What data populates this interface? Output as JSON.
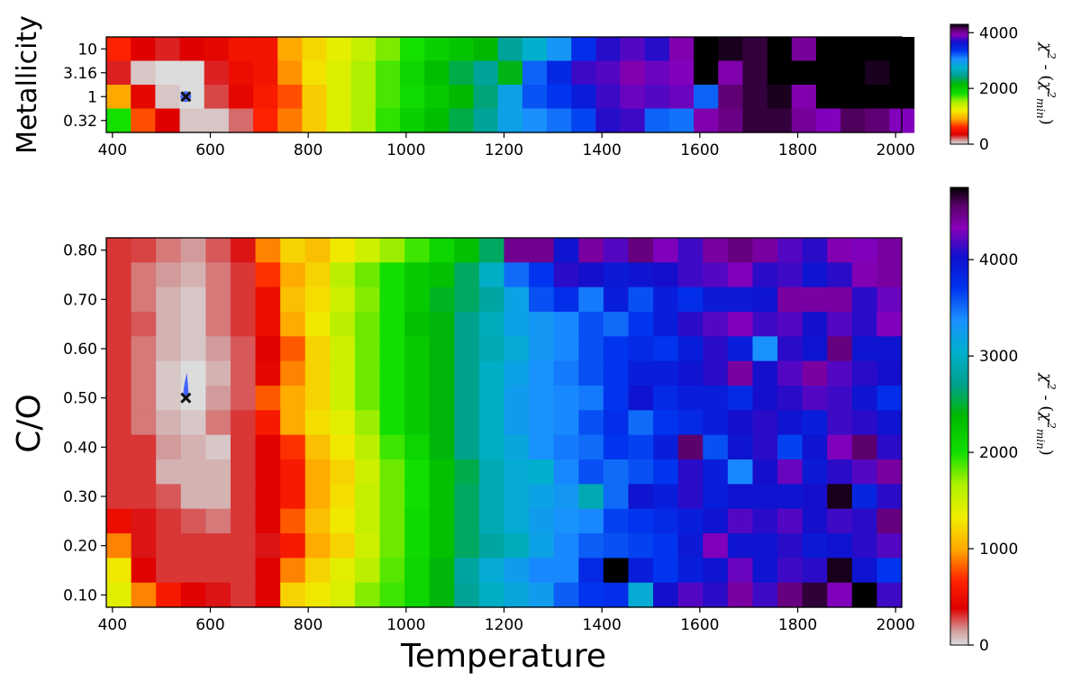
{
  "chart_data": [
    {
      "type": "heatmap",
      "name": "metallicity-panel",
      "xlabel": "",
      "ylabel": "Metallicity",
      "x_ticks": [
        400,
        600,
        800,
        1000,
        1200,
        1400,
        1600,
        1800,
        2000
      ],
      "y_categories": [
        "0.32",
        "1",
        "3.16",
        "10"
      ],
      "x_range": [
        387.5,
        2012.5
      ],
      "x_bin_width": 25,
      "best_fit": {
        "temperature": 550,
        "metallicity": "1"
      },
      "colorbar": {
        "label": "χ² - (χ²_min)",
        "ticks": [
          0,
          2000,
          4000
        ],
        "range": [
          0,
          4300
        ]
      },
      "rows": [
        {
          "y": "10",
          "values": [
            600,
            350,
            300,
            350,
            400,
            500,
            500,
            900,
            1100,
            1250,
            1400,
            1600,
            1800,
            1950,
            2050,
            2150,
            2500,
            2750,
            3000,
            3400,
            3700,
            3800,
            3700,
            3950,
            4300,
            4250,
            4200,
            4500,
            4000,
            4600,
            4700,
            4550,
            4400
          ]
        },
        {
          "y": "3.16",
          "values": [
            300,
            50,
            0,
            0,
            300,
            450,
            500,
            850,
            1150,
            1300,
            1500,
            1700,
            1900,
            2100,
            2300,
            2500,
            2200,
            3200,
            3450,
            3750,
            3800,
            3950,
            3850,
            3900,
            4300,
            3950,
            4200,
            4600,
            4600,
            4300,
            4500,
            4250,
            4400
          ]
        },
        {
          "y": "1",
          "values": [
            900,
            400,
            50,
            0,
            250,
            400,
            550,
            700,
            1050,
            1300,
            1500,
            1700,
            1850,
            2000,
            2150,
            2400,
            2900,
            3250,
            3350,
            3550,
            3750,
            3850,
            3800,
            3850,
            3200,
            4100,
            4200,
            4250,
            3950,
            4300,
            4350,
            4350,
            4600
          ]
        },
        {
          "y": "0.32",
          "values": [
            1800,
            700,
            350,
            50,
            50,
            200,
            600,
            800,
            1050,
            1300,
            1500,
            1750,
            1950,
            2100,
            2300,
            2500,
            2900,
            3050,
            3150,
            3300,
            3700,
            3750,
            3200,
            3150,
            3950,
            4050,
            4200,
            4200,
            4000,
            3900,
            4150,
            4100,
            3900
          ]
        }
      ]
    },
    {
      "type": "heatmap",
      "name": "co-panel",
      "xlabel": "Temperature",
      "ylabel": "C/O",
      "x_ticks": [
        400,
        600,
        800,
        1000,
        1200,
        1400,
        1600,
        1800,
        2000
      ],
      "y_ticks": [
        "0.10",
        "0.20",
        "0.30",
        "0.40",
        "0.50",
        "0.60",
        "0.70",
        "0.80"
      ],
      "y_range": [
        0.075,
        0.825
      ],
      "y_bin": 0.05,
      "x_range": [
        387.5,
        2012.5
      ],
      "x_bin_width": 50,
      "best_fit": {
        "temperature": 550,
        "co": 0.5
      },
      "colorbar": {
        "label": "χ² - (χ²_min)",
        "ticks": [
          0,
          1000,
          2000,
          3000,
          4000
        ],
        "range": [
          0,
          4750
        ]
      },
      "rows": [
        {
          "y": 0.8,
          "values": [
            300,
            280,
            200,
            150,
            250,
            350,
            900,
            1200,
            1100,
            1300,
            1500,
            1700,
            1900,
            2100,
            2300,
            2600,
            4450,
            4450,
            4000,
            4400,
            4200,
            4500,
            4300,
            4150,
            4400,
            4500,
            4400,
            4200,
            4100,
            4350,
            4300,
            4400
          ]
        },
        {
          "y": 0.75,
          "values": [
            300,
            200,
            150,
            100,
            200,
            300,
            700,
            1000,
            1200,
            1600,
            1800,
            2000,
            2200,
            2300,
            2600,
            3000,
            3500,
            3700,
            4100,
            4050,
            3950,
            4000,
            4050,
            4150,
            4200,
            4300,
            4100,
            4150,
            4000,
            4100,
            4350,
            4400
          ]
        },
        {
          "y": 0.7,
          "values": [
            300,
            200,
            100,
            50,
            200,
            300,
            500,
            1100,
            1250,
            1500,
            1750,
            2000,
            2200,
            2450,
            2600,
            2800,
            3200,
            3600,
            3750,
            3450,
            3900,
            3600,
            3900,
            3750,
            3950,
            3950,
            4000,
            4400,
            4400,
            4400,
            4100,
            4250
          ]
        },
        {
          "y": 0.65,
          "values": [
            300,
            250,
            100,
            50,
            200,
            300,
            500,
            1000,
            1300,
            1600,
            1800,
            2000,
            2300,
            2400,
            2700,
            2950,
            3200,
            3300,
            3400,
            3600,
            3500,
            3700,
            3900,
            4100,
            4200,
            4300,
            4150,
            4200,
            4050,
            4200,
            4100,
            4300
          ]
        },
        {
          "y": 0.6,
          "values": [
            300,
            200,
            100,
            50,
            150,
            250,
            400,
            800,
            1200,
            1500,
            1800,
            2000,
            2200,
            2400,
            2700,
            2900,
            3100,
            3300,
            3400,
            3600,
            3700,
            3800,
            3700,
            3900,
            4100,
            3900,
            3350,
            4100,
            4000,
            4500,
            4000,
            4000
          ]
        },
        {
          "y": 0.55,
          "values": [
            300,
            200,
            50,
            0,
            100,
            250,
            450,
            900,
            1200,
            1500,
            1800,
            2000,
            2200,
            2400,
            2700,
            3000,
            3200,
            3350,
            3450,
            3600,
            3700,
            3900,
            3900,
            4000,
            4100,
            4400,
            4050,
            4200,
            4400,
            4200,
            4100,
            4050
          ]
        },
        {
          "y": 0.5,
          "values": [
            300,
            200,
            50,
            0,
            150,
            250,
            800,
            1000,
            1200,
            1500,
            1800,
            2000,
            2200,
            2400,
            2700,
            3000,
            3250,
            3350,
            3400,
            3450,
            3700,
            4000,
            3800,
            3900,
            3900,
            3800,
            4050,
            4100,
            4200,
            4150,
            4000,
            3750
          ]
        },
        {
          "y": 0.45,
          "values": [
            300,
            200,
            100,
            50,
            200,
            300,
            600,
            1000,
            1250,
            1400,
            1700,
            2000,
            2200,
            2400,
            2700,
            3000,
            3250,
            3350,
            3400,
            3600,
            3750,
            3500,
            3700,
            3800,
            3900,
            4050,
            4100,
            4000,
            3900,
            4150,
            4100,
            4000
          ]
        },
        {
          "y": 0.4,
          "values": [
            300,
            300,
            150,
            100,
            50,
            300,
            400,
            700,
            1100,
            1300,
            1600,
            1900,
            2100,
            2400,
            2700,
            3000,
            3150,
            3350,
            3450,
            3500,
            3700,
            3650,
            3900,
            4550,
            3600,
            4000,
            4100,
            3650,
            4000,
            4300,
            4550,
            4100
          ]
        },
        {
          "y": 0.35,
          "values": [
            300,
            300,
            100,
            100,
            100,
            300,
            400,
            600,
            1000,
            1200,
            1500,
            1800,
            2000,
            2300,
            2550,
            2900,
            3100,
            3050,
            3400,
            3600,
            3500,
            3600,
            3700,
            4100,
            3900,
            3400,
            4050,
            4250,
            3950,
            4100,
            4200,
            4400
          ]
        },
        {
          "y": 0.3,
          "values": [
            300,
            300,
            250,
            100,
            100,
            300,
            400,
            600,
            1000,
            1250,
            1550,
            1800,
            2000,
            2300,
            2600,
            2900,
            3100,
            3200,
            3300,
            2900,
            3500,
            4000,
            3900,
            4100,
            3900,
            4000,
            4000,
            4000,
            4050,
            4700,
            3850,
            4100
          ]
        },
        {
          "y": 0.25,
          "values": [
            500,
            350,
            300,
            250,
            200,
            300,
            400,
            800,
            1100,
            1300,
            1550,
            1800,
            2050,
            2300,
            2600,
            2900,
            3100,
            3250,
            3350,
            3400,
            3650,
            3700,
            3800,
            3900,
            4000,
            4200,
            4100,
            4200,
            4050,
            4150,
            4100,
            4500
          ]
        },
        {
          "y": 0.2,
          "values": [
            900,
            350,
            300,
            300,
            300,
            300,
            350,
            600,
            1000,
            1200,
            1500,
            1800,
            2050,
            2300,
            2600,
            2800,
            2950,
            3200,
            3400,
            3550,
            3600,
            3650,
            3700,
            3950,
            4300,
            4000,
            4000,
            4100,
            3950,
            4000,
            4100,
            4200
          ]
        },
        {
          "y": 0.15,
          "values": [
            1300,
            400,
            300,
            300,
            300,
            300,
            400,
            900,
            1200,
            1400,
            1600,
            1850,
            2100,
            2400,
            2800,
            3100,
            3250,
            3400,
            3400,
            3800,
            4750,
            3900,
            3700,
            3900,
            4000,
            4250,
            4000,
            4150,
            4100,
            4700,
            4000,
            3700
          ]
        },
        {
          "y": 0.1,
          "values": [
            1400,
            900,
            600,
            400,
            350,
            300,
            400,
            1200,
            1300,
            1450,
            1750,
            1900,
            2100,
            2400,
            2750,
            3000,
            3150,
            3250,
            3550,
            3700,
            3750,
            3100,
            4050,
            4200,
            4100,
            4400,
            4150,
            4500,
            4650,
            4300,
            4750,
            4150
          ]
        }
      ]
    }
  ]
}
